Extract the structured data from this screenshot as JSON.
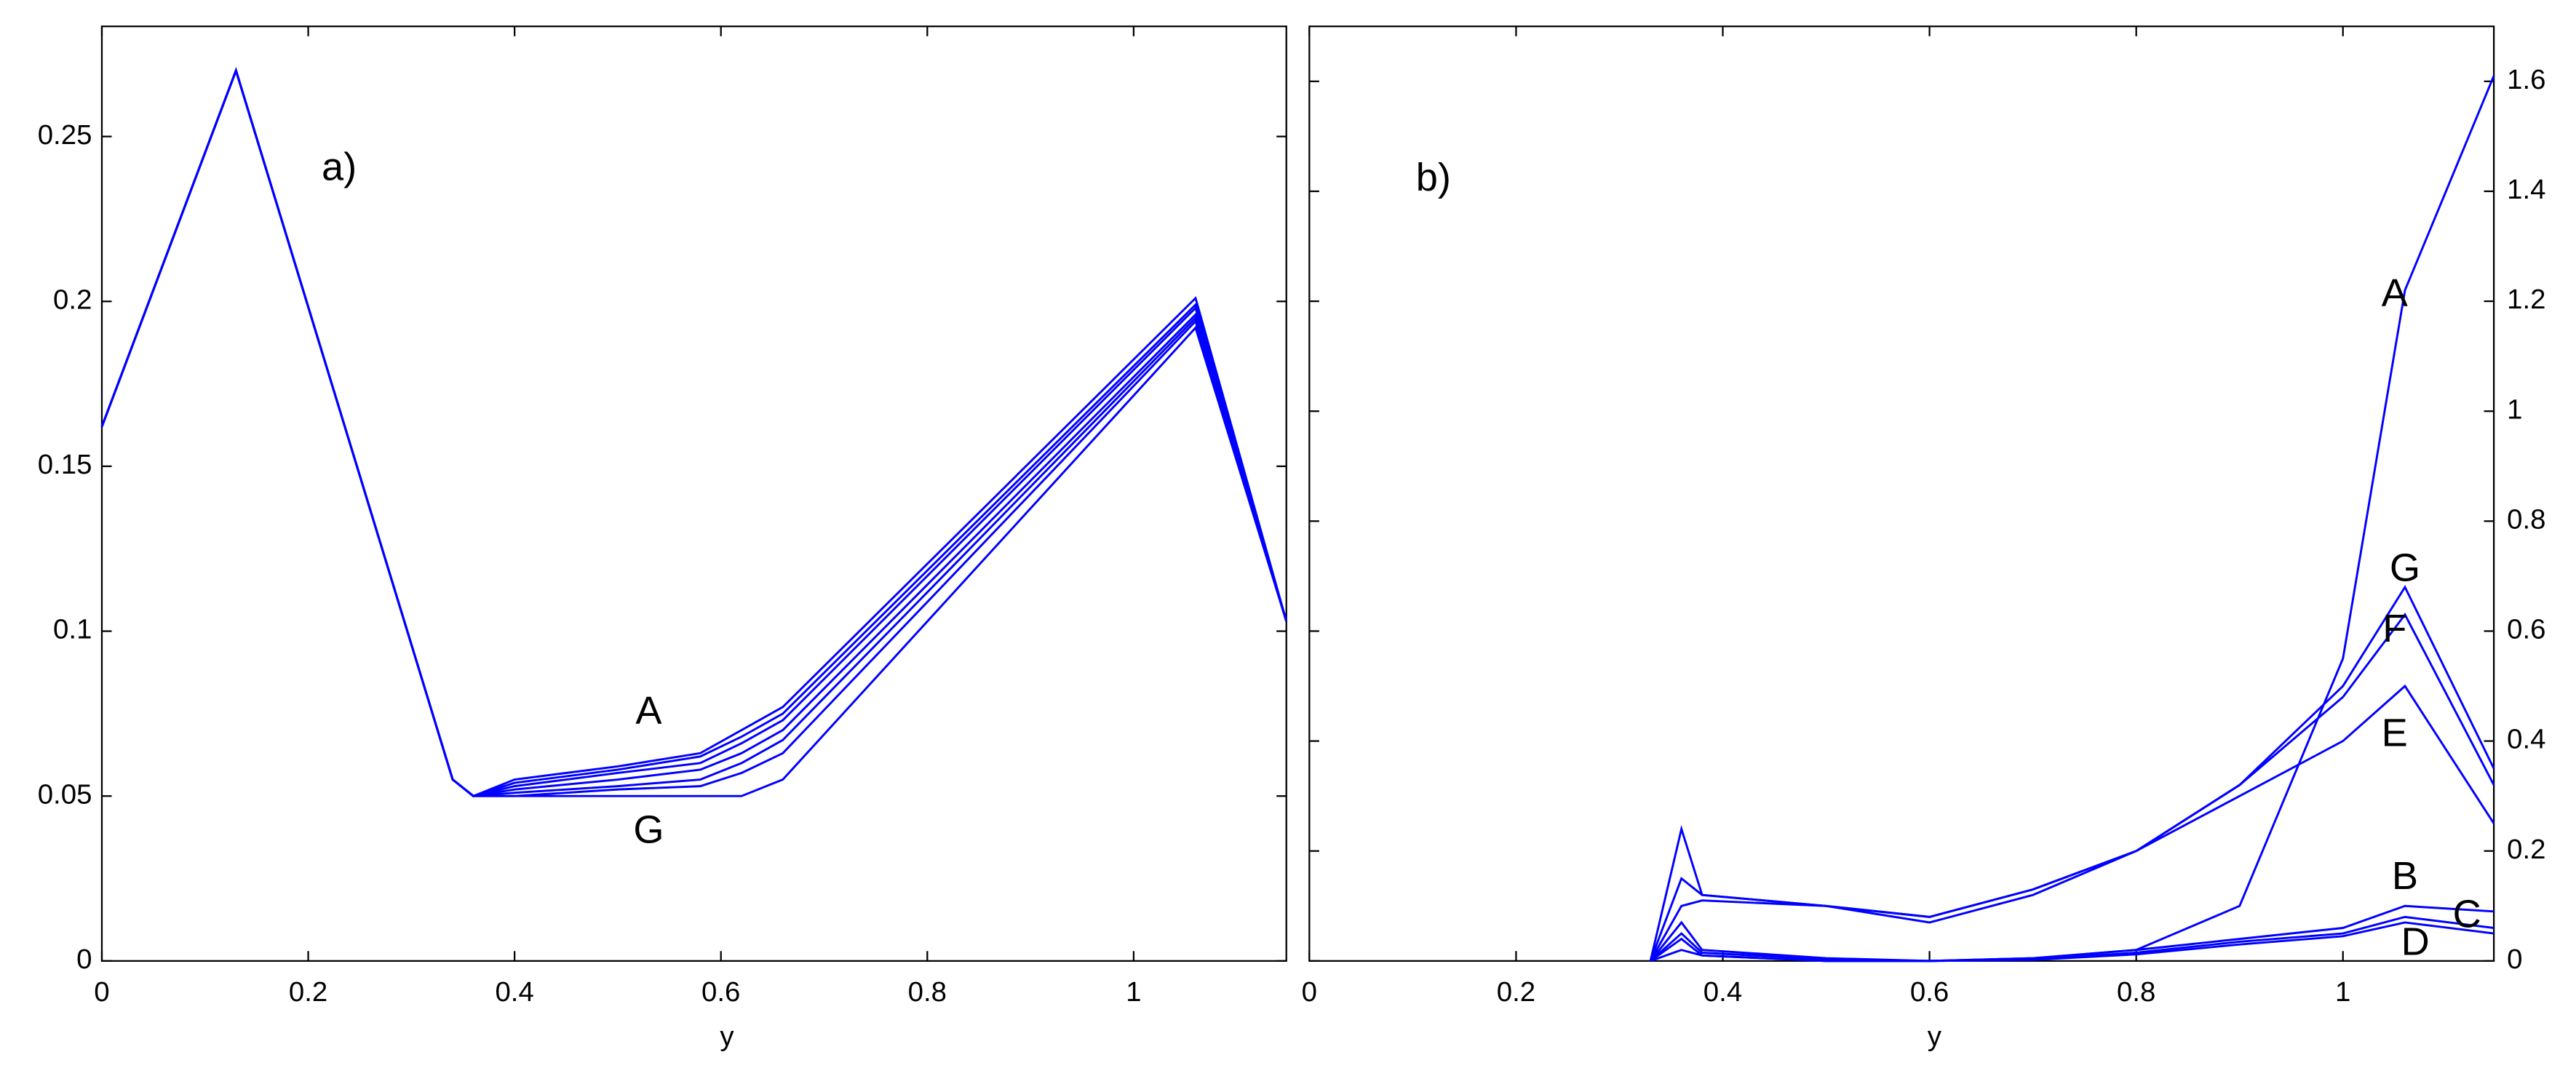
{
  "chart_data": [
    {
      "type": "line",
      "xlabel": "y",
      "xlim": [
        0,
        1.148
      ],
      "ylim": [
        0,
        0.2834
      ],
      "xticks": [
        0,
        0.2,
        0.4,
        0.6,
        0.8,
        1
      ],
      "yticks": [
        0,
        0.05,
        0.1,
        0.15,
        0.2,
        0.25
      ],
      "yaxis_side": "left",
      "color": "#0000ff",
      "x": [
        0,
        0.13,
        0.34,
        0.36,
        0.4,
        0.5,
        0.58,
        0.62,
        0.66,
        1.06,
        1.148
      ],
      "series": [
        {
          "values": [
            0.162,
            0.27,
            0.055,
            0.05,
            0.055,
            0.059,
            0.063,
            0.07,
            0.077,
            0.201,
            0.103
          ]
        },
        {
          "values": [
            0.162,
            0.27,
            0.055,
            0.05,
            0.054,
            0.058,
            0.062,
            0.068,
            0.075,
            0.199,
            0.103
          ]
        },
        {
          "values": [
            0.162,
            0.27,
            0.055,
            0.05,
            0.053,
            0.057,
            0.06,
            0.066,
            0.073,
            0.198,
            0.103
          ]
        },
        {
          "values": [
            0.162,
            0.27,
            0.055,
            0.05,
            0.052,
            0.055,
            0.058,
            0.063,
            0.07,
            0.196,
            0.103
          ]
        },
        {
          "values": [
            0.162,
            0.27,
            0.055,
            0.05,
            0.051,
            0.053,
            0.055,
            0.06,
            0.067,
            0.195,
            0.103
          ]
        },
        {
          "values": [
            0.162,
            0.27,
            0.055,
            0.05,
            0.05,
            0.052,
            0.053,
            0.057,
            0.063,
            0.194,
            0.103
          ]
        },
        {
          "values": [
            0.162,
            0.27,
            0.055,
            0.05,
            0.05,
            0.05,
            0.05,
            0.05,
            0.055,
            0.192,
            0.103
          ]
        }
      ],
      "annotations": [
        {
          "text": "a)",
          "x": 0.23,
          "y": 0.24
        },
        {
          "text": "A",
          "x": 0.53,
          "y": 0.075
        },
        {
          "text": "G",
          "x": 0.53,
          "y": 0.039
        }
      ]
    },
    {
      "type": "line",
      "xlabel": "y",
      "xlim": [
        0,
        1.146
      ],
      "ylim": [
        0,
        1.7
      ],
      "xticks": [
        0,
        0.2,
        0.4,
        0.6,
        0.8,
        1
      ],
      "yticks": [
        0,
        0.2,
        0.4,
        0.6,
        0.8,
        1,
        1.2,
        1.4,
        1.6
      ],
      "yaxis_side": "right",
      "color": "#0000ff",
      "x": [
        0.33,
        0.36,
        0.38,
        0.5,
        0.6,
        0.7,
        0.8,
        0.9,
        1.0,
        1.06,
        1.146
      ],
      "series": [
        {
          "values": [
            0,
            0.02,
            0.01,
            0,
            0,
            0.005,
            0.02,
            0.1,
            0.55,
            1.22,
            1.61
          ]
        },
        {
          "values": [
            0,
            0.07,
            0.02,
            0.005,
            0,
            0.005,
            0.02,
            0.04,
            0.06,
            0.1,
            0.09
          ]
        },
        {
          "values": [
            0,
            0.05,
            0.015,
            0.003,
            0,
            0.003,
            0.015,
            0.035,
            0.05,
            0.08,
            0.06
          ]
        },
        {
          "values": [
            0,
            0.04,
            0.01,
            0,
            0,
            0.002,
            0.012,
            0.03,
            0.045,
            0.07,
            0.05
          ]
        },
        {
          "values": [
            0,
            0.1,
            0.11,
            0.1,
            0.08,
            0.13,
            0.2,
            0.3,
            0.4,
            0.5,
            0.25
          ]
        },
        {
          "values": [
            0,
            0.15,
            0.12,
            0.1,
            0.07,
            0.12,
            0.2,
            0.32,
            0.48,
            0.63,
            0.32
          ]
        },
        {
          "values": [
            0,
            0.24,
            0.12,
            0.1,
            0.08,
            0.13,
            0.2,
            0.32,
            0.5,
            0.68,
            0.35
          ]
        }
      ],
      "annotations": [
        {
          "text": "b)",
          "x": 0.12,
          "y": 1.42
        },
        {
          "text": "A",
          "x": 1.05,
          "y": 1.21
        },
        {
          "text": "G",
          "x": 1.06,
          "y": 0.71
        },
        {
          "text": "F",
          "x": 1.05,
          "y": 0.6
        },
        {
          "text": "E",
          "x": 1.05,
          "y": 0.41
        },
        {
          "text": "B",
          "x": 1.06,
          "y": 0.15
        },
        {
          "text": "C",
          "x": 1.12,
          "y": 0.08
        },
        {
          "text": "D",
          "x": 1.07,
          "y": 0.03
        }
      ]
    }
  ]
}
